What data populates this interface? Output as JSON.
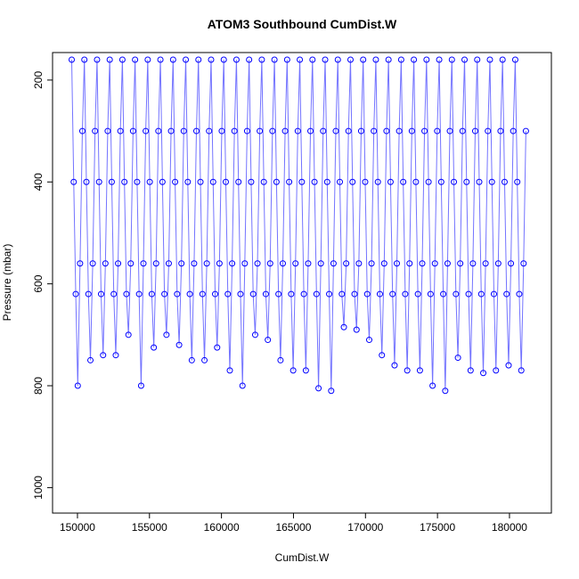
{
  "chart_data": {
    "type": "line",
    "title": "ATOM3 Southbound CumDist.W",
    "x_label": "CumDist.W",
    "y_label": "Pressure (mbar)",
    "xlim": [
      148270,
      182910
    ],
    "ylim": [
      1050,
      146
    ],
    "xticks": [
      150000,
      155000,
      160000,
      165000,
      170000,
      175000,
      180000
    ],
    "yticks": [
      200,
      400,
      600,
      800,
      1000
    ],
    "series": [
      {
        "name": "Pressure",
        "color": "#0000ff",
        "x": [
          149600,
          149740,
          149880,
          150020,
          150180,
          150340,
          150480,
          150620,
          150760,
          150900,
          151060,
          151220,
          151360,
          151500,
          151640,
          151780,
          151940,
          152100,
          152240,
          152380,
          152520,
          152660,
          152820,
          152980,
          153120,
          153260,
          153400,
          153540,
          153700,
          153860,
          154000,
          154140,
          154280,
          154420,
          154580,
          154740,
          154880,
          155020,
          155160,
          155300,
          155460,
          155620,
          155760,
          155900,
          156040,
          156180,
          156340,
          156500,
          156640,
          156780,
          156920,
          157060,
          157220,
          157380,
          157520,
          157660,
          157800,
          157940,
          158100,
          158260,
          158400,
          158540,
          158680,
          158820,
          158980,
          159140,
          159280,
          159420,
          159560,
          159700,
          159860,
          160020,
          160160,
          160300,
          160440,
          160580,
          160740,
          160900,
          161040,
          161180,
          161320,
          161460,
          161620,
          161780,
          161920,
          162060,
          162200,
          162340,
          162500,
          162660,
          162800,
          162940,
          163080,
          163220,
          163380,
          163540,
          163680,
          163820,
          163960,
          164100,
          164260,
          164420,
          164560,
          164700,
          164840,
          164980,
          165140,
          165300,
          165440,
          165580,
          165720,
          165860,
          166020,
          166180,
          166320,
          166460,
          166600,
          166740,
          166900,
          167060,
          167200,
          167340,
          167480,
          167620,
          167780,
          167940,
          168080,
          168220,
          168360,
          168500,
          168660,
          168820,
          168960,
          169100,
          169240,
          169380,
          169540,
          169700,
          169840,
          169980,
          170120,
          170260,
          170420,
          170580,
          170720,
          170860,
          171000,
          171140,
          171300,
          171460,
          171600,
          171740,
          171880,
          172020,
          172180,
          172340,
          172480,
          172620,
          172760,
          172900,
          173060,
          173220,
          173360,
          173500,
          173640,
          173780,
          173940,
          174100,
          174240,
          174380,
          174520,
          174660,
          174820,
          174980,
          175120,
          175260,
          175400,
          175540,
          175700,
          175860,
          176000,
          176140,
          176280,
          176420,
          176580,
          176740,
          176880,
          177020,
          177160,
          177300,
          177460,
          177620,
          177760,
          177900,
          178040,
          178180,
          178340,
          178500,
          178640,
          178780,
          178920,
          179060,
          179220,
          179380,
          179520,
          179660,
          179800,
          179940,
          180100,
          180260,
          180400,
          180540,
          180680,
          180820,
          180980,
          181140
        ],
        "values": [
          160,
          400,
          620,
          800,
          560,
          300,
          160,
          400,
          620,
          750,
          560,
          300,
          160,
          400,
          620,
          740,
          560,
          300,
          160,
          400,
          620,
          740,
          560,
          300,
          160,
          400,
          620,
          700,
          560,
          300,
          160,
          400,
          620,
          800,
          560,
          300,
          160,
          400,
          620,
          725,
          560,
          300,
          160,
          400,
          620,
          700,
          560,
          300,
          160,
          400,
          620,
          720,
          560,
          300,
          160,
          400,
          620,
          750,
          560,
          300,
          160,
          400,
          620,
          750,
          560,
          300,
          160,
          400,
          620,
          725,
          560,
          300,
          160,
          400,
          620,
          770,
          560,
          300,
          160,
          400,
          620,
          800,
          560,
          300,
          160,
          400,
          620,
          700,
          560,
          300,
          160,
          400,
          620,
          710,
          560,
          300,
          160,
          400,
          620,
          750,
          560,
          300,
          160,
          400,
          620,
          770,
          560,
          300,
          160,
          400,
          620,
          770,
          560,
          300,
          160,
          400,
          620,
          805,
          560,
          300,
          160,
          400,
          620,
          810,
          560,
          300,
          160,
          400,
          620,
          685,
          560,
          300,
          160,
          400,
          620,
          690,
          560,
          300,
          160,
          400,
          620,
          710,
          560,
          300,
          160,
          400,
          620,
          740,
          560,
          300,
          160,
          400,
          620,
          760,
          560,
          300,
          160,
          400,
          620,
          770,
          560,
          300,
          160,
          400,
          620,
          770,
          560,
          300,
          160,
          400,
          620,
          800,
          560,
          300,
          160,
          400,
          620,
          810,
          560,
          300,
          160,
          400,
          620,
          745,
          560,
          300,
          160,
          400,
          620,
          770,
          560,
          300,
          160,
          400,
          620,
          775,
          560,
          300,
          160,
          400,
          620,
          770,
          560,
          300,
          160,
          400,
          620,
          760,
          560,
          300,
          160,
          400,
          620,
          770,
          560,
          300
        ]
      }
    ]
  }
}
